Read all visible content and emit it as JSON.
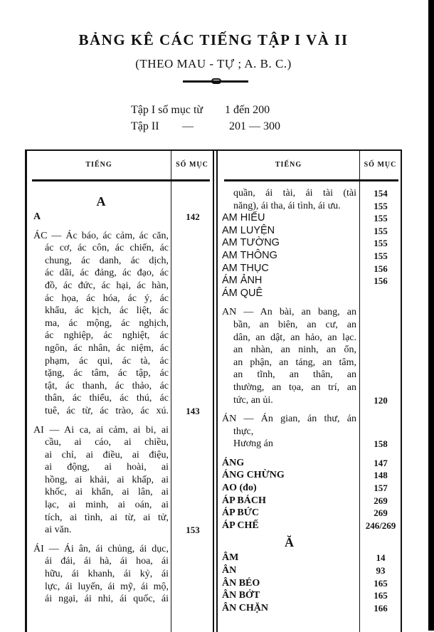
{
  "header": {
    "title": "BẢNG KÊ CÁC TIẾNG TẬP I VÀ II",
    "subtitle": "(THEO MAU - TỰ ; A. B. C.)",
    "ranges": [
      {
        "label": "Tập I số mục từ",
        "from": "1 đến 200"
      },
      {
        "label": "Tập II",
        "dash": "—",
        "from": "201 — 300"
      }
    ]
  },
  "table": {
    "columns": [
      "TIẾNG",
      "SỐ MỤC"
    ],
    "left": [
      {
        "type": "letter",
        "t": "A"
      },
      {
        "type": "firstbold",
        "t": "A",
        "n": "142"
      },
      {
        "type": "first",
        "t": "ÁC — Ác báo, ác cảm, ác căn,"
      },
      {
        "type": "just",
        "t": "ác cơ, ác côn, ác chiến, ác"
      },
      {
        "type": "just",
        "t": "chung, ác danh, ác dịch,"
      },
      {
        "type": "just",
        "t": "ác dãi, ác đảng, ác đạo, ác"
      },
      {
        "type": "just",
        "t": "đồ, ác đức, ác hại, ác hàn,"
      },
      {
        "type": "just",
        "t": "ác họa, ác hóa, ác ý, ác"
      },
      {
        "type": "just",
        "t": "khẩu, ác kịch, ác liệt, ác"
      },
      {
        "type": "just",
        "t": "ma, ác mộng, ác nghịch,"
      },
      {
        "type": "just",
        "t": "ác nghiệp, ác nghiệt, ác"
      },
      {
        "type": "just",
        "t": "ngôn, ác nhân, ác niệm, ác"
      },
      {
        "type": "just",
        "t": "phạm, ác qui, ác tà, ác"
      },
      {
        "type": "just",
        "t": "tặng, ác tâm, ác tập, ác"
      },
      {
        "type": "just",
        "t": "tật, ác thanh, ác thảo, ác"
      },
      {
        "type": "just",
        "t": "thân, ác thiểu, ác thú, ác"
      },
      {
        "type": "just",
        "t": "tuê, ác từ, ác trào, ác xú.",
        "n": "143"
      },
      {
        "type": "first",
        "t": "AI — Ai ca, ai cảm, ai bi, ai"
      },
      {
        "type": "just",
        "t": "cầu, ai cáo, ai chiều,"
      },
      {
        "type": "just",
        "t": "ai chỉ, ai điều, ai điệu,"
      },
      {
        "type": "just",
        "t": "ai động, ai hoài, ai"
      },
      {
        "type": "just",
        "t": "hồng, ai khải, ai khấp, ai"
      },
      {
        "type": "just",
        "t": "khốc, ai khẩn, ai lân, ai"
      },
      {
        "type": "just",
        "t": "lạc, ai minh, ai oán, ai"
      },
      {
        "type": "just",
        "t": "tích, ai tình, ai từ, ai tử,"
      },
      {
        "type": "end",
        "t": "ai văn.",
        "n": "153"
      },
      {
        "type": "first",
        "t": "ÁI — Ái ân, ái chủng, ái dục,"
      },
      {
        "type": "just",
        "t": "ái đái, ái hà, ái hoa, ái"
      },
      {
        "type": "just",
        "t": "hữu, ái khanh, ái kỷ, ái"
      },
      {
        "type": "just",
        "t": "lực, ái luyến, ái mỹ, ái mộ,"
      },
      {
        "type": "just",
        "t": "ái ngại, ái nhi, ái quốc, ái"
      }
    ],
    "right": [
      {
        "type": "just",
        "t": "quần, ái tài, ái tài (tài",
        "n": "154"
      },
      {
        "type": "end",
        "t": "năng), ái tha, ái tình, ái ưu.",
        "n": "155"
      },
      {
        "type": "plain",
        "t": "AM  HIẾU",
        "n": "155"
      },
      {
        "type": "plain",
        "t": "AM  LUYỆN",
        "n": "155"
      },
      {
        "type": "plain",
        "t": "AM  TƯỜNG",
        "n": "155"
      },
      {
        "type": "plain",
        "t": "AM  THÔNG",
        "n": "155"
      },
      {
        "type": "plain",
        "t": "AM  THỤC",
        "n": "156"
      },
      {
        "type": "plain",
        "t": "ÁM  ẢNH",
        "n": "156"
      },
      {
        "type": "plain",
        "t": "ÁM  QUÊ"
      },
      {
        "type": "first",
        "t": "AN — An bài, an bang, an"
      },
      {
        "type": "just",
        "t": "bần, an biên, an cư, an"
      },
      {
        "type": "just",
        "t": "dân, an dật, an hảo, an lạc."
      },
      {
        "type": "just",
        "t": "an nhàn, an ninh, an ổn,"
      },
      {
        "type": "just",
        "t": "an phận, an táng, an tâm,"
      },
      {
        "type": "just",
        "t": "an tĩnh, an thân, an"
      },
      {
        "type": "just",
        "t": "thường, an tọa, an trí, an"
      },
      {
        "type": "end",
        "t": "tức, an ủi.",
        "n": "120"
      },
      {
        "type": "first",
        "t": "ÁN — Án gian, án thư, án"
      },
      {
        "type": "end",
        "t": "thực,"
      },
      {
        "type": "end",
        "t": "Hương án",
        "n": "158"
      },
      {
        "type": "firstbold",
        "t": "ÁNG",
        "n": "147"
      },
      {
        "type": "bold",
        "t": "ÁNG CHỪNG",
        "n": "148"
      },
      {
        "type": "bold",
        "t": "AO (đo)",
        "n": "157"
      },
      {
        "type": "bold",
        "t": "ÁP BÁCH",
        "n": "269"
      },
      {
        "type": "bold",
        "t": "ÁP BỨC",
        "n": "269"
      },
      {
        "type": "bold",
        "t": "ÁP CHẾ",
        "n": "246/269"
      },
      {
        "type": "letter",
        "t": "Ă"
      },
      {
        "type": "bold",
        "t": "ÂM",
        "n": "14"
      },
      {
        "type": "bold",
        "t": "ÂN",
        "n": "93"
      },
      {
        "type": "bold",
        "t": "ÂN BÉO",
        "n": "165"
      },
      {
        "type": "bold",
        "t": "ÂN BỚT",
        "n": "165"
      },
      {
        "type": "bold",
        "t": "ÂN CHẶN",
        "n": "166"
      }
    ]
  }
}
